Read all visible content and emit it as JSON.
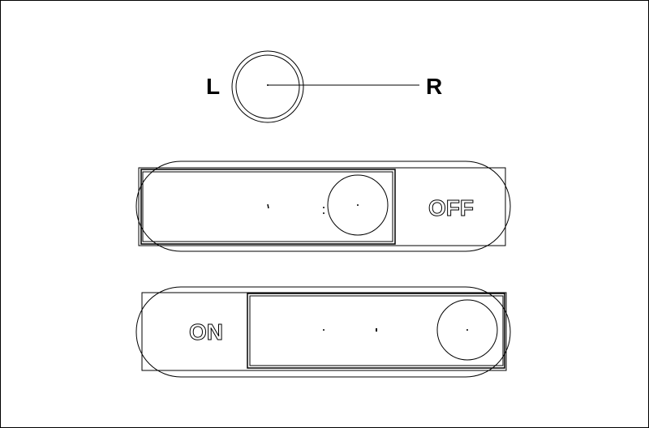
{
  "knob": {
    "left_label": "L",
    "right_label": "R"
  },
  "switch_off": {
    "label": "OFF"
  },
  "switch_on": {
    "label": "ON"
  }
}
